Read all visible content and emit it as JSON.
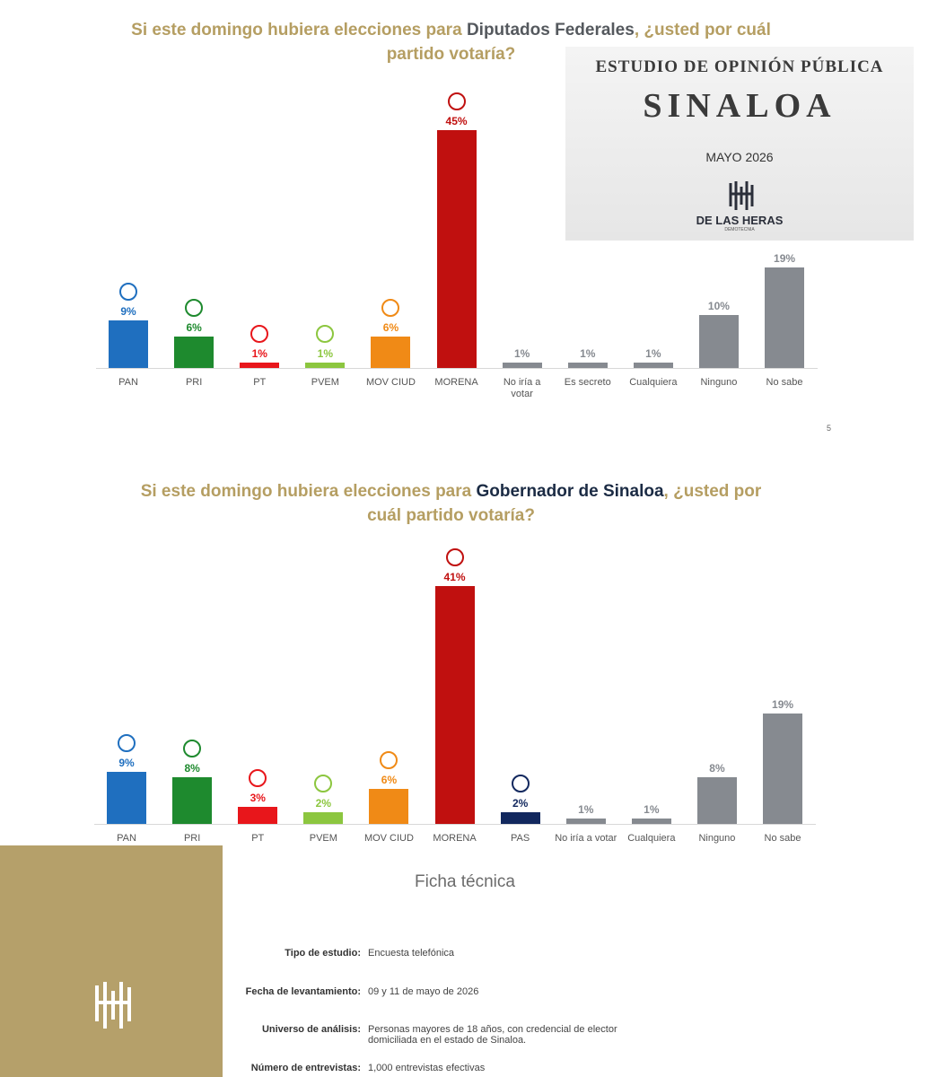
{
  "chart_data": [
    {
      "type": "bar",
      "title": [
        "Si este domingo hubiera elecciones para ",
        "Diputados Federales",
        ", ¿usted por cuál partido votaría?"
      ],
      "categories": [
        "PAN",
        "PRI",
        "PT",
        "PVEM",
        "MOV CIUD",
        "MORENA",
        "No iría a votar",
        "Es secreto",
        "Cualquiera",
        "Ninguno",
        "No sabe"
      ],
      "values": [
        9,
        6,
        1,
        1,
        6,
        45,
        1,
        1,
        1,
        10,
        19
      ],
      "value_labels": [
        "9%",
        "6%",
        "1%",
        "1%",
        "6%",
        "45%",
        "1%",
        "1%",
        "1%",
        "10%",
        "19%"
      ],
      "colors": [
        "#1f6fbf",
        "#1e8a2e",
        "#e8161b",
        "#8cc63f",
        "#f08a16",
        "#c0100f",
        "#868a90",
        "#868a90",
        "#868a90",
        "#868a90",
        "#868a90"
      ]
    },
    {
      "type": "bar",
      "title": [
        "Si este domingo hubiera elecciones para ",
        "Gobernador de Sinaloa",
        ", ¿usted por cuál partido votaría?"
      ],
      "categories": [
        "PAN",
        "PRI",
        "PT",
        "PVEM",
        "MOV CIUD",
        "MORENA",
        "PAS",
        "No iría a votar",
        "Cualquiera",
        "Ninguno",
        "No sabe"
      ],
      "values": [
        9,
        8,
        3,
        2,
        6,
        41,
        2,
        1,
        1,
        8,
        19
      ],
      "value_labels": [
        "9%",
        "8%",
        "3%",
        "2%",
        "6%",
        "41%",
        "2%",
        "1%",
        "1%",
        "8%",
        "19%"
      ],
      "colors": [
        "#1f6fbf",
        "#1e8a2e",
        "#e8161b",
        "#8cc63f",
        "#f08a16",
        "#c0100f",
        "#12285e",
        "#868a90",
        "#868a90",
        "#868a90",
        "#868a90"
      ]
    }
  ],
  "header": {
    "study": "ESTUDIO DE OPINIÓN PÚBLICA",
    "state": "SINALOA",
    "date": "MAYO 2026",
    "brand": "DE LAS HERAS",
    "brand_sub": "DEMOTECNIA"
  },
  "page_number": 5,
  "ficha_tecnica": {
    "title": "Ficha técnica",
    "rows": [
      [
        "Tipo de estudio:",
        "Encuesta telefónica"
      ],
      [
        "Fecha de levantamiento:",
        "09 y 11 de mayo de 2026"
      ],
      [
        "Universo de análisis:",
        "Personas mayores de 18 años, con credencial de elector domiciliada en el estado de Sinaloa."
      ],
      [
        "Número de entrevistas:",
        "1,000 entrevistas efectivas"
      ]
    ]
  }
}
